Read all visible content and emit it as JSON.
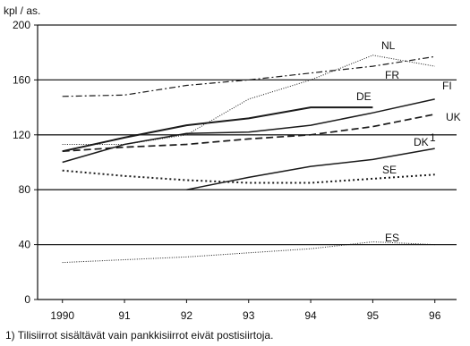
{
  "chart_data": {
    "type": "line",
    "ylabel": "kpl / as.",
    "ylim": [
      0,
      200
    ],
    "yticks": [
      0,
      40,
      80,
      120,
      160,
      200
    ],
    "xlim": [
      1989.6,
      1996.35
    ],
    "x_tick_values": [
      1990,
      1991,
      1992,
      1993,
      1994,
      1995,
      1996
    ],
    "x_tick_labels": [
      "1990",
      "91",
      "92",
      "93",
      "94",
      "95",
      "96"
    ],
    "grid": "horizontal",
    "series": [
      {
        "name": "NL",
        "style": "dotted-thin",
        "x": [
          1990,
          1991,
          1992,
          1993,
          1994,
          1995,
          1996
        ],
        "y": [
          113,
          113,
          120,
          146,
          160,
          178,
          170
        ]
      },
      {
        "name": "FR",
        "style": "dashdot",
        "x": [
          1990,
          1991,
          1992,
          1993,
          1994,
          1995,
          1996
        ],
        "y": [
          148,
          149,
          156,
          160,
          165,
          170,
          177
        ]
      },
      {
        "name": "DE",
        "style": "solid-bold",
        "x": [
          1990,
          1991,
          1992,
          1993,
          1994,
          1995
        ],
        "y": [
          108,
          118,
          127,
          132,
          140,
          140
        ]
      },
      {
        "name": "FI",
        "style": "solid",
        "x": [
          1990,
          1991,
          1992,
          1993,
          1994,
          1995,
          1996
        ],
        "y": [
          100,
          113,
          121,
          122,
          127,
          136,
          146
        ]
      },
      {
        "name": "UK",
        "style": "dashed",
        "x": [
          1990,
          1991,
          1992,
          1993,
          1994,
          1995,
          1996
        ],
        "y": [
          108,
          111,
          113,
          117,
          120,
          126,
          135
        ]
      },
      {
        "name": "DK1",
        "style": "solid",
        "x": [
          1992,
          1993,
          1994,
          1995,
          1996
        ],
        "y": [
          80,
          89,
          97,
          102,
          110
        ]
      },
      {
        "name": "SE",
        "style": "dotted-bold",
        "x": [
          1990,
          1991,
          1992,
          1993,
          1994,
          1995,
          1996
        ],
        "y": [
          94,
          90,
          87,
          85,
          85,
          88,
          91
        ]
      },
      {
        "name": "ES",
        "style": "dotted-thin",
        "x": [
          1990,
          1991,
          1992,
          1993,
          1994,
          1995,
          1996
        ],
        "y": [
          27,
          29,
          31,
          34,
          37,
          42,
          40
        ]
      }
    ],
    "annotations": [
      {
        "series": "NL",
        "text": "NL"
      },
      {
        "series": "FR",
        "text": "FR"
      },
      {
        "series": "DE",
        "text": "DE"
      },
      {
        "series": "FI",
        "text": "FI"
      },
      {
        "series": "UK",
        "text": "UK"
      },
      {
        "series": "DK1",
        "text": "DK",
        "superscript": "1"
      },
      {
        "series": "SE",
        "text": "SE"
      },
      {
        "series": "ES",
        "text": "ES"
      }
    ],
    "footnote": "1) Tilisiirrot sisältävät vain pankkisiirrot eivät postisiirtoja."
  }
}
